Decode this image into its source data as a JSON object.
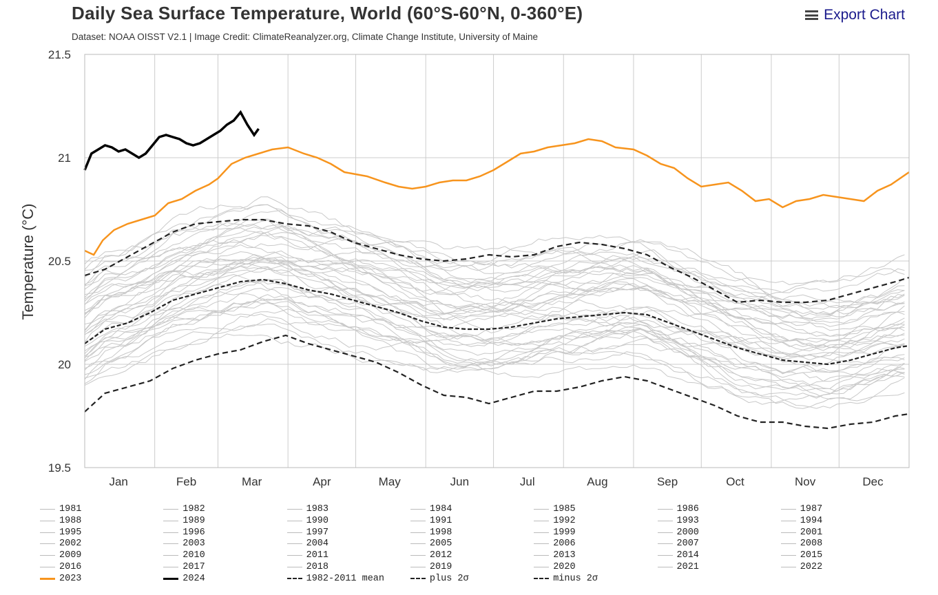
{
  "header": {
    "title": "Daily Sea Surface Temperature, World (60°S-60°N, 0-360°E)",
    "subtitle": "Dataset: NOAA OISST V2.1 | Image Credit: ClimateReanalyzer.org, Climate Change Institute, University of Maine",
    "export_label": "Export Chart"
  },
  "colors": {
    "year_line": "#c8c8c8",
    "y2023": "#f7941d",
    "y2024": "#000000",
    "stat": "#222222",
    "grid": "#cccccc"
  },
  "chart_data": {
    "type": "line",
    "ylabel": "Temperature (°C)",
    "ylim": [
      19.5,
      21.5
    ],
    "yticks": [
      "19.5",
      "20",
      "20.5",
      "21",
      "21.5"
    ],
    "xlim": [
      1,
      366
    ],
    "month_labels": [
      "Jan",
      "Feb",
      "Mar",
      "Apr",
      "May",
      "Jun",
      "Jul",
      "Aug",
      "Sep",
      "Oct",
      "Nov",
      "Dec"
    ],
    "month_label_days": [
      16,
      46,
      75,
      106,
      136,
      167,
      197,
      228,
      259,
      289,
      320,
      350
    ],
    "grid_days": [
      1,
      32,
      60,
      91,
      121,
      152,
      182,
      213,
      244,
      274,
      305,
      335,
      366
    ],
    "grid": true,
    "background_years": [
      "1981",
      "1982",
      "1983",
      "1984",
      "1985",
      "1986",
      "1987",
      "1988",
      "1989",
      "1990",
      "1991",
      "1992",
      "1993",
      "1994",
      "1995",
      "1996",
      "1997",
      "1998",
      "1999",
      "2000",
      "2001",
      "2002",
      "2003",
      "2004",
      "2005",
      "2006",
      "2007",
      "2008",
      "2009",
      "2010",
      "2011",
      "2012",
      "2013",
      "2014",
      "2015",
      "2016",
      "2017",
      "2018",
      "2019",
      "2020",
      "2021",
      "2022"
    ],
    "series": [
      {
        "name": "2023",
        "x": [
          1,
          5,
          9,
          14,
          20,
          26,
          32,
          38,
          44,
          50,
          56,
          60,
          66,
          72,
          78,
          84,
          91,
          98,
          104,
          110,
          116,
          121,
          126,
          134,
          140,
          146,
          152,
          158,
          164,
          170,
          176,
          182,
          188,
          194,
          200,
          206,
          212,
          218,
          224,
          230,
          236,
          244,
          250,
          256,
          262,
          268,
          274,
          280,
          286,
          292,
          298,
          304,
          310,
          316,
          322,
          328,
          334,
          340,
          346,
          352,
          358,
          366
        ],
        "y": [
          20.55,
          20.53,
          20.6,
          20.65,
          20.68,
          20.7,
          20.72,
          20.78,
          20.8,
          20.84,
          20.87,
          20.9,
          20.97,
          21.0,
          21.02,
          21.04,
          21.05,
          21.02,
          21.0,
          20.97,
          20.93,
          20.92,
          20.91,
          20.88,
          20.86,
          20.85,
          20.86,
          20.88,
          20.89,
          20.89,
          20.91,
          20.94,
          20.98,
          21.02,
          21.03,
          21.05,
          21.06,
          21.07,
          21.09,
          21.08,
          21.05,
          21.04,
          21.01,
          20.97,
          20.95,
          20.9,
          20.86,
          20.87,
          20.88,
          20.84,
          20.79,
          20.8,
          20.76,
          20.79,
          20.8,
          20.82,
          20.81,
          20.8,
          20.79,
          20.84,
          20.87,
          20.93
        ]
      },
      {
        "name": "2024",
        "x": [
          1,
          4,
          7,
          10,
          13,
          16,
          19,
          22,
          25,
          28,
          31,
          34,
          37,
          40,
          43,
          46,
          49,
          52,
          55,
          58,
          61,
          64,
          67,
          70,
          73,
          76,
          78
        ],
        "y": [
          20.94,
          21.02,
          21.04,
          21.06,
          21.05,
          21.03,
          21.04,
          21.02,
          21.0,
          21.02,
          21.06,
          21.1,
          21.11,
          21.1,
          21.09,
          21.07,
          21.06,
          21.07,
          21.09,
          21.11,
          21.13,
          21.16,
          21.18,
          21.22,
          21.16,
          21.11,
          21.14
        ]
      },
      {
        "name": "1982-2011 mean",
        "x": [
          1,
          10,
          20,
          30,
          40,
          50,
          60,
          70,
          80,
          90,
          100,
          110,
          120,
          130,
          140,
          150,
          160,
          170,
          180,
          190,
          200,
          210,
          220,
          230,
          240,
          250,
          260,
          270,
          280,
          290,
          300,
          310,
          320,
          330,
          340,
          350,
          360,
          366
        ],
        "y": [
          20.1,
          20.17,
          20.2,
          20.25,
          20.31,
          20.34,
          20.37,
          20.4,
          20.41,
          20.39,
          20.36,
          20.34,
          20.31,
          20.28,
          20.25,
          20.21,
          20.18,
          20.17,
          20.17,
          20.18,
          20.2,
          20.22,
          20.23,
          20.24,
          20.25,
          20.24,
          20.2,
          20.16,
          20.12,
          20.08,
          20.05,
          20.02,
          20.01,
          20.0,
          20.02,
          20.05,
          20.08,
          20.09
        ]
      },
      {
        "name": "plus 2σ",
        "x": [
          1,
          10,
          20,
          30,
          40,
          50,
          60,
          70,
          80,
          90,
          100,
          110,
          120,
          130,
          140,
          150,
          160,
          170,
          180,
          190,
          200,
          210,
          220,
          230,
          240,
          250,
          260,
          270,
          280,
          290,
          300,
          310,
          320,
          330,
          340,
          350,
          360,
          366
        ],
        "y": [
          20.43,
          20.46,
          20.52,
          20.58,
          20.64,
          20.68,
          20.69,
          20.7,
          20.7,
          20.68,
          20.67,
          20.64,
          20.59,
          20.56,
          20.53,
          20.51,
          20.5,
          20.51,
          20.53,
          20.52,
          20.53,
          20.57,
          20.59,
          20.58,
          20.56,
          20.53,
          20.47,
          20.42,
          20.36,
          20.3,
          20.31,
          20.3,
          20.3,
          20.31,
          20.34,
          20.37,
          20.4,
          20.42
        ]
      },
      {
        "name": "minus 2σ",
        "x": [
          1,
          10,
          20,
          30,
          40,
          50,
          60,
          70,
          80,
          90,
          100,
          110,
          120,
          130,
          140,
          150,
          160,
          170,
          180,
          190,
          200,
          210,
          220,
          230,
          240,
          250,
          260,
          270,
          280,
          290,
          300,
          310,
          320,
          330,
          340,
          350,
          360,
          366
        ],
        "y": [
          19.77,
          19.86,
          19.89,
          19.92,
          19.98,
          20.02,
          20.05,
          20.07,
          20.11,
          20.14,
          20.1,
          20.07,
          20.04,
          20.01,
          19.96,
          19.9,
          19.85,
          19.84,
          19.81,
          19.84,
          19.87,
          19.87,
          19.89,
          19.92,
          19.94,
          19.92,
          19.88,
          19.84,
          19.8,
          19.75,
          19.72,
          19.72,
          19.7,
          19.69,
          19.71,
          19.72,
          19.75,
          19.76
        ]
      }
    ],
    "legend": {
      "placement": "bottom",
      "entries": [
        "1981",
        "1982",
        "1983",
        "1984",
        "1985",
        "1986",
        "1987",
        "1988",
        "1989",
        "1990",
        "1991",
        "1992",
        "1993",
        "1994",
        "1995",
        "1996",
        "1997",
        "1998",
        "1999",
        "2000",
        "2001",
        "2002",
        "2003",
        "2004",
        "2005",
        "2006",
        "2007",
        "2008",
        "2009",
        "2010",
        "2011",
        "2012",
        "2013",
        "2014",
        "2015",
        "2016",
        "2017",
        "2018",
        "2019",
        "2020",
        "2021",
        "2022",
        "2023",
        "2024",
        "1982-2011 mean",
        "plus 2σ",
        "minus 2σ"
      ]
    }
  }
}
